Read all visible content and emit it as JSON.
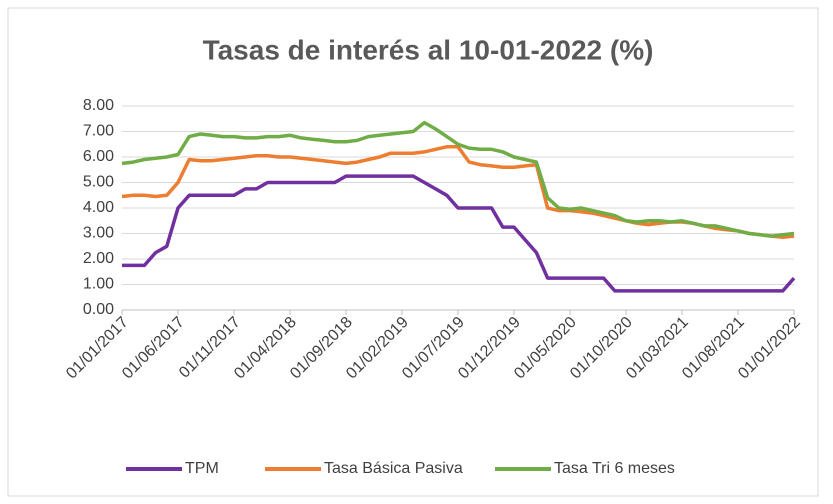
{
  "chart_data": {
    "type": "line",
    "title": "Tasas de interés al 10-01-2022 (%)",
    "categories": [
      "01/01/2017",
      "01/02/2017",
      "01/03/2017",
      "01/04/2017",
      "01/05/2017",
      "01/06/2017",
      "01/07/2017",
      "01/08/2017",
      "01/09/2017",
      "01/10/2017",
      "01/11/2017",
      "01/12/2017",
      "01/01/2018",
      "01/02/2018",
      "01/03/2018",
      "01/04/2018",
      "01/05/2018",
      "01/06/2018",
      "01/07/2018",
      "01/08/2018",
      "01/09/2018",
      "01/10/2018",
      "01/11/2018",
      "01/12/2018",
      "01/01/2019",
      "01/02/2019",
      "01/03/2019",
      "01/04/2019",
      "01/05/2019",
      "01/06/2019",
      "01/07/2019",
      "01/08/2019",
      "01/09/2019",
      "01/10/2019",
      "01/11/2019",
      "01/12/2019",
      "01/01/2020",
      "01/02/2020",
      "01/03/2020",
      "01/04/2020",
      "01/05/2020",
      "01/06/2020",
      "01/07/2020",
      "01/08/2020",
      "01/09/2020",
      "01/10/2020",
      "01/11/2020",
      "01/12/2020",
      "01/01/2021",
      "01/02/2021",
      "01/03/2021",
      "01/04/2021",
      "01/05/2021",
      "01/06/2021",
      "01/07/2021",
      "01/08/2021",
      "01/09/2021",
      "01/10/2021",
      "01/11/2021",
      "01/12/2021",
      "01/01/2022"
    ],
    "xticks": [
      "01/01/2017",
      "01/06/2017",
      "01/11/2017",
      "01/04/2018",
      "01/09/2018",
      "01/02/2019",
      "01/07/2019",
      "01/12/2019",
      "01/05/2020",
      "01/10/2020",
      "01/03/2021",
      "01/08/2021",
      "01/01/2022"
    ],
    "series": [
      {
        "name": "TPM",
        "color": "#7030a0",
        "values": [
          1.75,
          1.75,
          1.75,
          2.25,
          2.5,
          4.0,
          4.5,
          4.5,
          4.5,
          4.5,
          4.5,
          4.75,
          4.75,
          5.0,
          5.0,
          5.0,
          5.0,
          5.0,
          5.0,
          5.0,
          5.25,
          5.25,
          5.25,
          5.25,
          5.25,
          5.25,
          5.25,
          5.0,
          4.75,
          4.5,
          4.0,
          4.0,
          4.0,
          4.0,
          3.25,
          3.25,
          2.75,
          2.25,
          1.25,
          1.25,
          1.25,
          1.25,
          1.25,
          1.25,
          0.75,
          0.75,
          0.75,
          0.75,
          0.75,
          0.75,
          0.75,
          0.75,
          0.75,
          0.75,
          0.75,
          0.75,
          0.75,
          0.75,
          0.75,
          0.75,
          1.25
        ]
      },
      {
        "name": "Tasa Básica Pasiva",
        "color": "#ed7d31",
        "values": [
          4.45,
          4.5,
          4.5,
          4.45,
          4.5,
          5.0,
          5.9,
          5.85,
          5.85,
          5.9,
          5.95,
          6.0,
          6.05,
          6.05,
          6.0,
          6.0,
          5.95,
          5.9,
          5.85,
          5.8,
          5.75,
          5.8,
          5.9,
          6.0,
          6.15,
          6.15,
          6.15,
          6.2,
          6.3,
          6.4,
          6.4,
          5.8,
          5.7,
          5.65,
          5.6,
          5.6,
          5.65,
          5.7,
          4.0,
          3.9,
          3.9,
          3.85,
          3.8,
          3.7,
          3.6,
          3.5,
          3.4,
          3.35,
          3.4,
          3.45,
          3.45,
          3.4,
          3.3,
          3.2,
          3.15,
          3.1,
          3.0,
          2.95,
          2.9,
          2.85,
          2.9
        ]
      },
      {
        "name": "Tasa Tri 6 meses",
        "color": "#70ad47",
        "values": [
          5.75,
          5.8,
          5.9,
          5.95,
          6.0,
          6.1,
          6.8,
          6.9,
          6.85,
          6.8,
          6.8,
          6.75,
          6.75,
          6.8,
          6.8,
          6.85,
          6.75,
          6.7,
          6.65,
          6.6,
          6.6,
          6.65,
          6.8,
          6.85,
          6.9,
          6.95,
          7.0,
          7.35,
          7.1,
          6.8,
          6.5,
          6.35,
          6.3,
          6.3,
          6.2,
          6.0,
          5.9,
          5.8,
          4.4,
          4.0,
          3.95,
          4.0,
          3.9,
          3.8,
          3.7,
          3.5,
          3.45,
          3.5,
          3.5,
          3.45,
          3.5,
          3.4,
          3.3,
          3.3,
          3.2,
          3.1,
          3.0,
          2.95,
          2.9,
          2.95,
          3.0
        ]
      }
    ],
    "ylim": [
      0,
      8
    ],
    "yticks": [
      {
        "value": 0,
        "label": "0.00"
      },
      {
        "value": 1,
        "label": "1.00"
      },
      {
        "value": 2,
        "label": "2.00"
      },
      {
        "value": 3,
        "label": "3.00"
      },
      {
        "value": 4,
        "label": "4.00"
      },
      {
        "value": 5,
        "label": "5.00"
      },
      {
        "value": 6,
        "label": "6.00"
      },
      {
        "value": 7,
        "label": "7.00"
      },
      {
        "value": 8,
        "label": "8.00"
      }
    ],
    "grid": true
  }
}
